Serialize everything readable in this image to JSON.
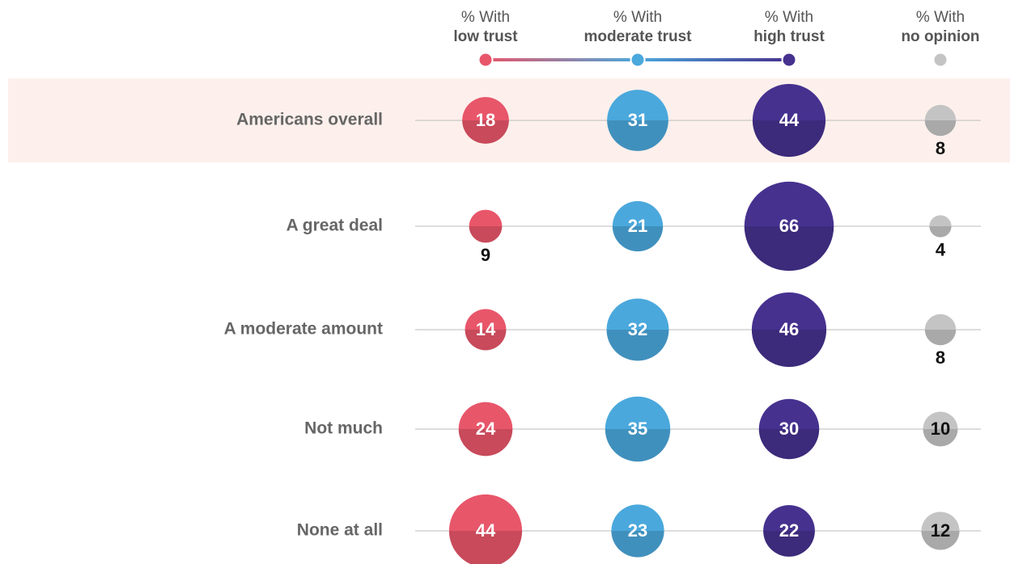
{
  "chart_data": {
    "type": "bubble",
    "column_prefix": "% With",
    "categories": [
      "Americans overall",
      "A great deal",
      "A moderate amount",
      "Not much",
      "None at all"
    ],
    "highlight_row": 0,
    "series": [
      {
        "name": "low trust",
        "color": "#e8566a",
        "values": [
          18,
          9,
          14,
          24,
          44
        ]
      },
      {
        "name": "moderate trust",
        "color": "#4aa8dc",
        "values": [
          31,
          21,
          32,
          35,
          23
        ]
      },
      {
        "name": "high trust",
        "color": "#46318f",
        "values": [
          44,
          66,
          46,
          30,
          22
        ]
      },
      {
        "name": "no opinion",
        "color": "#c4c4c4",
        "values": [
          8,
          4,
          8,
          10,
          12
        ]
      }
    ]
  }
}
